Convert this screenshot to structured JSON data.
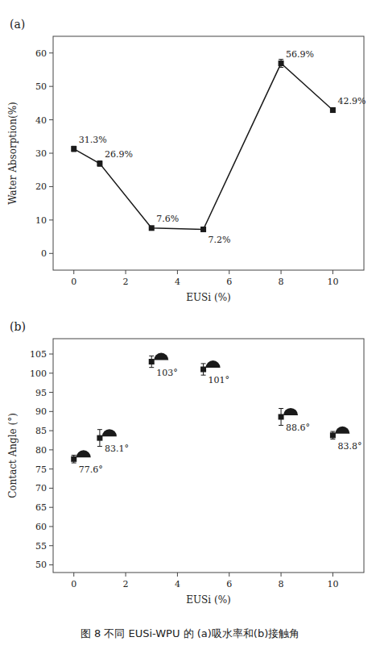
{
  "chart_data": [
    {
      "type": "line",
      "title": "(a)",
      "x": [
        0,
        1,
        3,
        5,
        8,
        10
      ],
      "values": [
        31.3,
        26.9,
        7.6,
        7.2,
        56.9,
        42.9
      ],
      "errors": [
        0.8,
        0.8,
        0.5,
        0.4,
        1.2,
        0.7
      ],
      "value_labels": [
        "31.3%",
        "26.9%",
        "7.6%",
        "7.2%",
        "56.9%",
        "42.9%"
      ],
      "data_labels": true,
      "x_label": "EUSi (%)",
      "y_label": "Water Absorption(%)",
      "xlim": [
        -0.8,
        11.2
      ],
      "xticks": [
        0,
        2,
        4,
        6,
        8,
        10
      ],
      "ylim": [
        -5,
        65
      ],
      "yticks": [
        0,
        10,
        20,
        30,
        40,
        50,
        60
      ],
      "color": "#1a1a1a",
      "marker": "square",
      "grid": false
    },
    {
      "type": "scatter",
      "title": "(b)",
      "x": [
        0,
        1,
        3,
        5,
        8,
        10
      ],
      "values": [
        77.6,
        83.1,
        103.0,
        101.0,
        88.6,
        83.8
      ],
      "errors": [
        1.0,
        2.2,
        1.5,
        1.5,
        2.2,
        1.0
      ],
      "value_labels": [
        "77.6°",
        "83.1°",
        "103°",
        "101°",
        "88.6°",
        "83.8°"
      ],
      "data_labels": true,
      "x_label": "EUSi (%)",
      "y_label": "Contact Angle (°)",
      "xlim": [
        -0.8,
        11.2
      ],
      "xticks": [
        0,
        2,
        4,
        6,
        8,
        10
      ],
      "ylim": [
        48,
        109
      ],
      "yticks": [
        50,
        55,
        60,
        65,
        70,
        75,
        80,
        85,
        90,
        95,
        100,
        105
      ],
      "color": "#1a1a1a",
      "marker": "square",
      "grid": false
    }
  ],
  "caption": "图 8 不同 EUSi-WPU 的  (a)吸水率和(b)接触角"
}
